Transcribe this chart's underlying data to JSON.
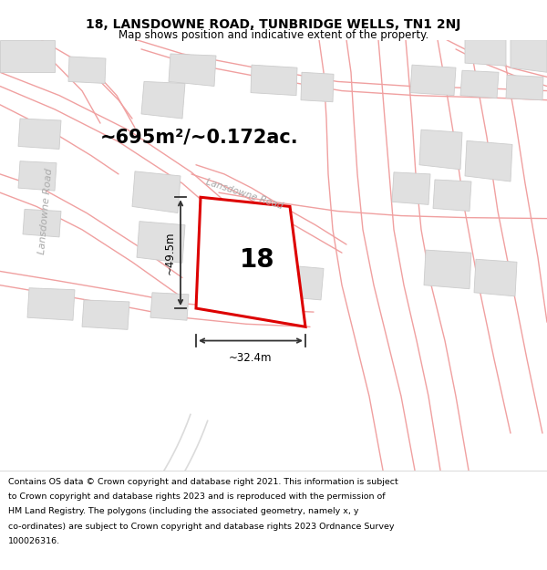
{
  "title": "18, LANSDOWNE ROAD, TUNBRIDGE WELLS, TN1 2NJ",
  "subtitle": "Map shows position and indicative extent of the property.",
  "area_text": "~695m²/~0.172ac.",
  "property_number": "18",
  "dim_width": "~32.4m",
  "dim_height": "~49.5m",
  "road_label_left": "Lansdowne Road",
  "road_label_top": "Lansdowne Road",
  "map_bg": "#fafafa",
  "property_fill": "white",
  "property_edge": "#dd0000",
  "road_line_color": "#f0a0a0",
  "road_curve_color": "#cccccc",
  "building_fill": "#e0e0e0",
  "building_edge": "#cccccc",
  "title_fontsize": 10,
  "subtitle_fontsize": 8.5,
  "footer_fontsize": 6.8,
  "footer_lines": [
    "Contains OS data © Crown copyright and database right 2021. This information is subject",
    "to Crown copyright and database rights 2023 and is reproduced with the permission of",
    "HM Land Registry. The polygons (including the associated geometry, namely x, y",
    "co-ordinates) are subject to Crown copyright and database rights 2023 Ordnance Survey",
    "100026316."
  ]
}
